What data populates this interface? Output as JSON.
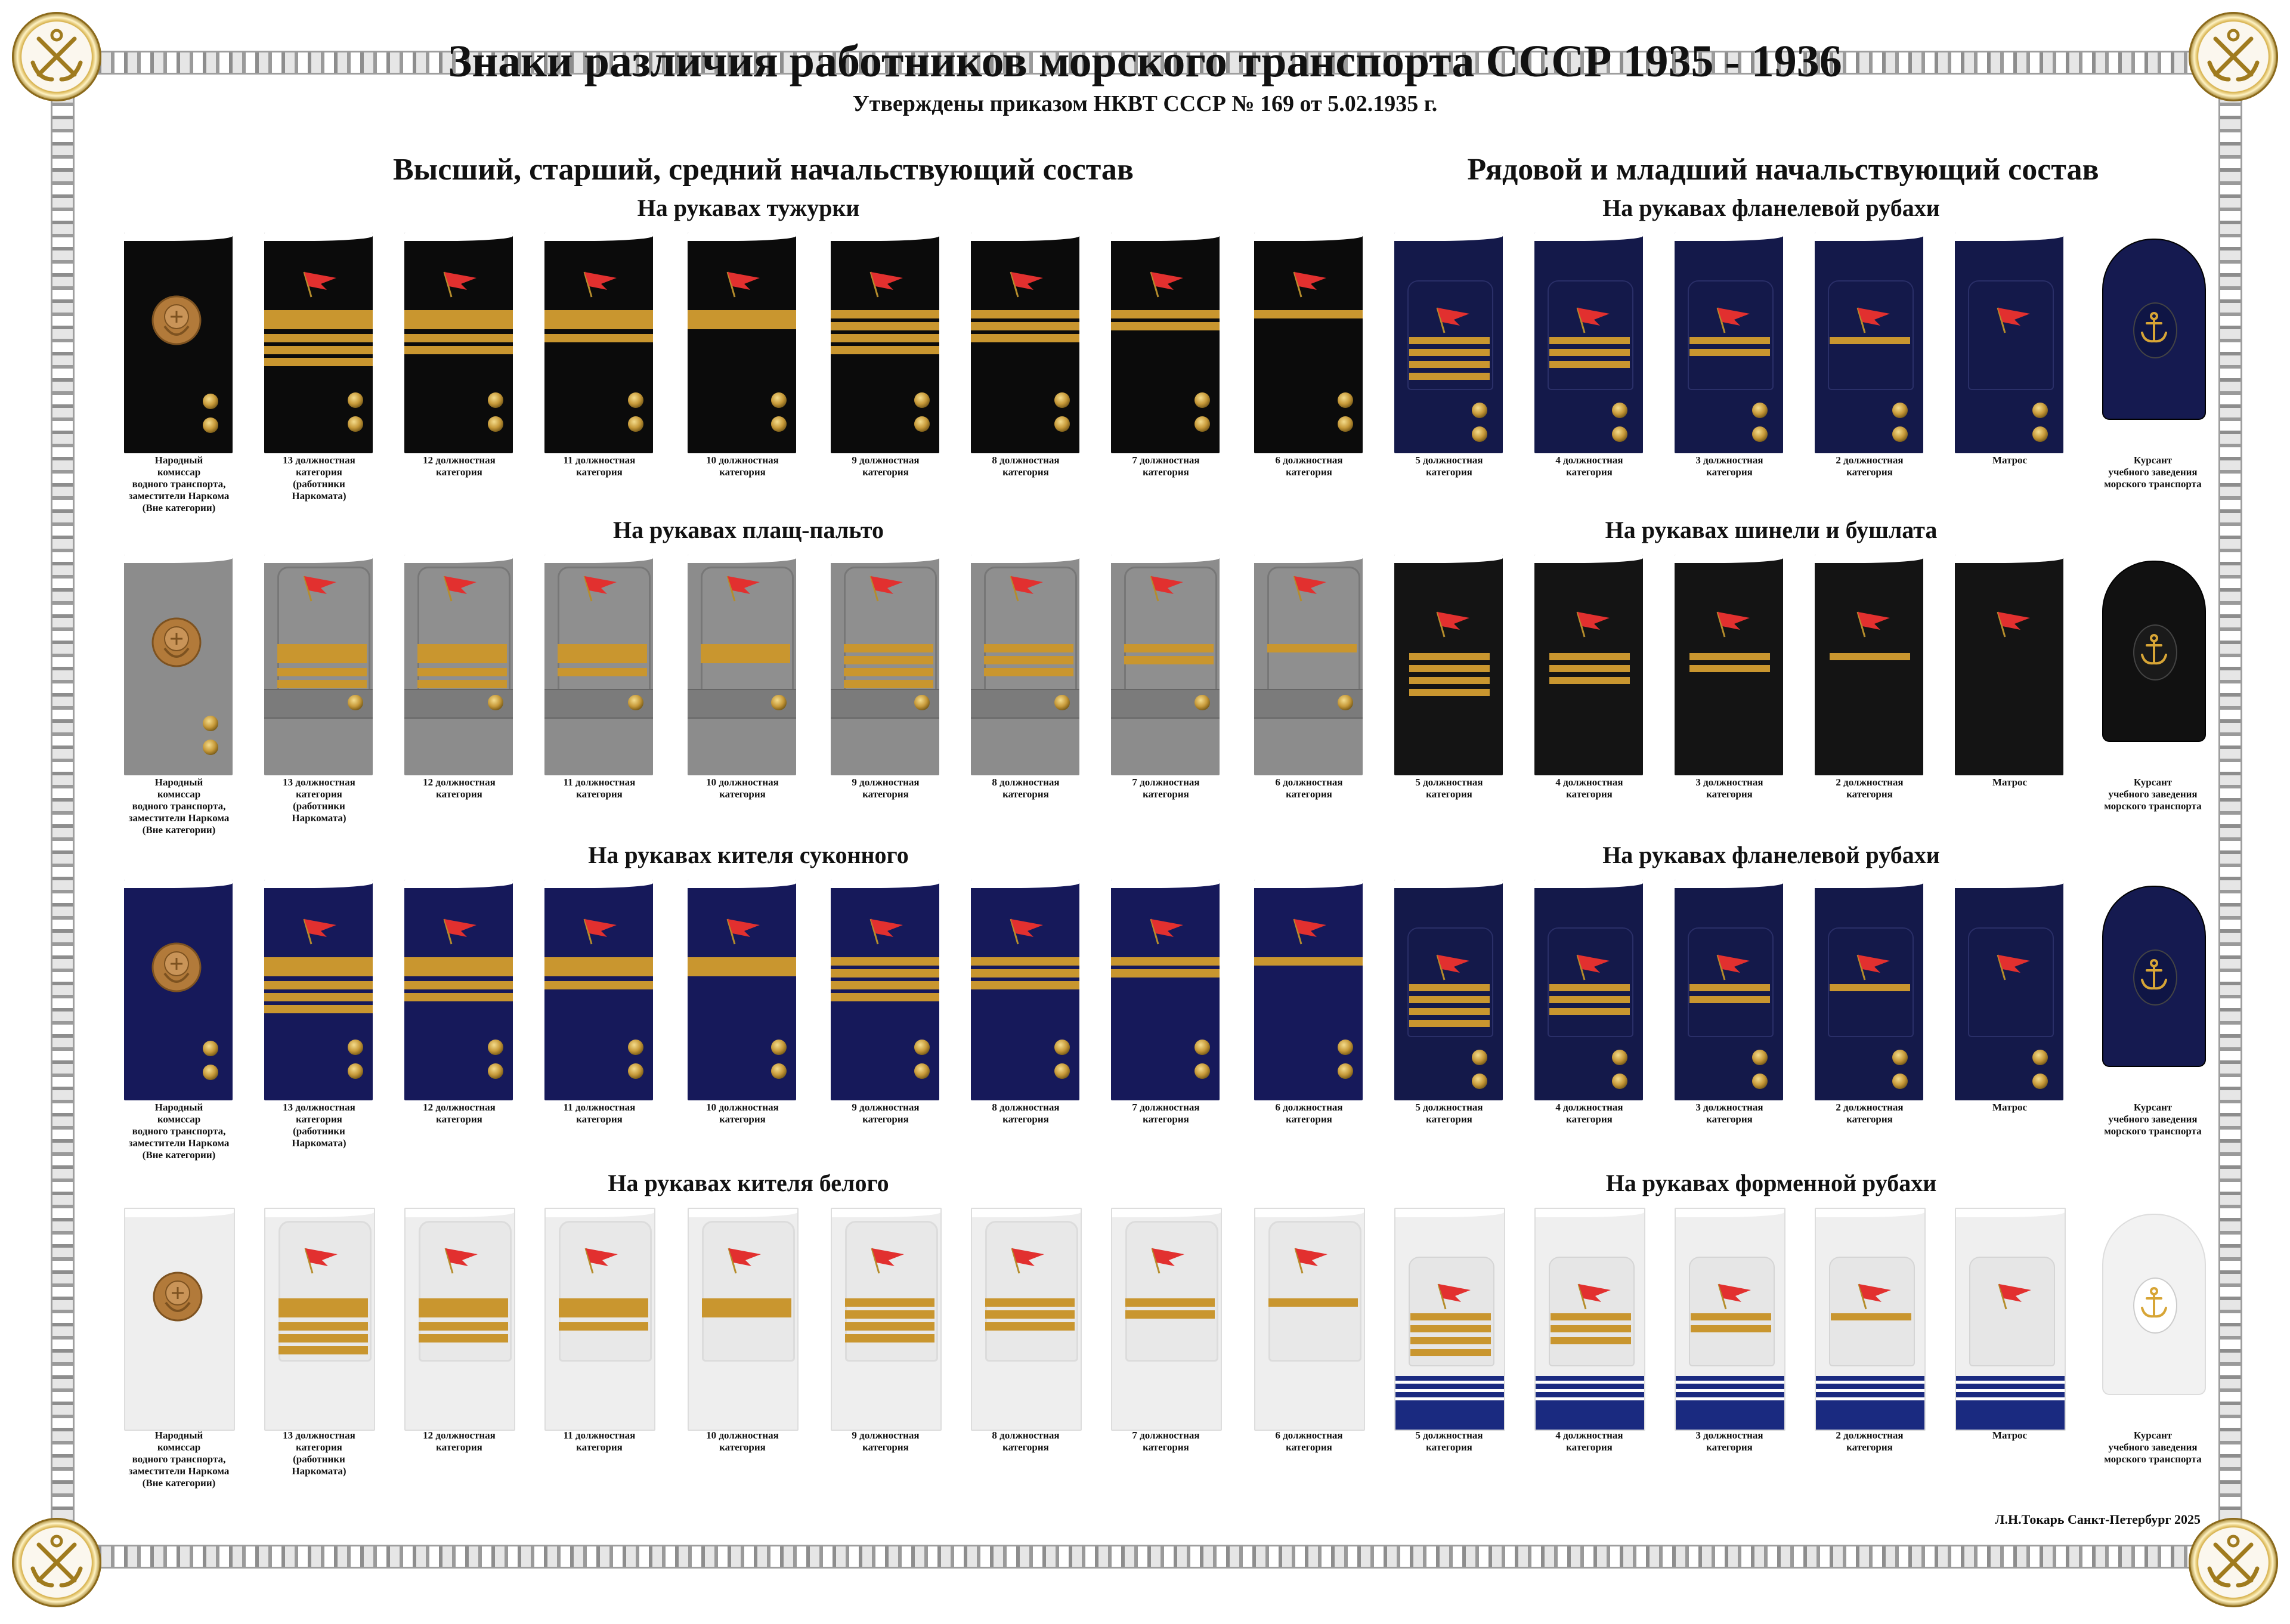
{
  "header": {
    "title": "Знаки различия работников морского транспорта СССР 1935 - 1936",
    "subtitle": "Утверждены приказом НКВТ СССР № 169 от 5.02.1935 г."
  },
  "sections": {
    "left": "Высший, старший, средний начальствующий состав",
    "right": "Рядовой и младший начальствующий состав"
  },
  "rows": [
    {
      "left_heading": "На рукавах тужурки",
      "right_heading": "На рукавах фланелевой рубахи",
      "left_cloth": "#0b0b0b",
      "right_cloth": "#14194a"
    },
    {
      "left_heading": "На рукавах плащ-пальто",
      "right_heading": "На рукавах шинели и бушлата",
      "left_cloth": "#8c8c8c",
      "right_cloth": "#141414"
    },
    {
      "left_heading": "На рукавах кителя суконного",
      "right_heading": "На рукавах фланелевой рубахи",
      "left_cloth": "#16195a",
      "right_cloth": "#14194a"
    },
    {
      "left_heading": "На рукавах кителя белого",
      "right_heading": "На рукавах форменной рубахи",
      "left_cloth": "#eeeeee",
      "right_cloth": "#efefef"
    }
  ],
  "left_labels": [
    "Народный\nкомиссар\nводного транспорта,\nзаместители Наркома\n(Вне категории)",
    "13 должностная\nкатегория\n(работники\nНаркомата)",
    "12 должностная\nкатегория",
    "11 должностная\nкатегория",
    "10 должностная\nкатегория",
    "9 должностная\nкатегория",
    "8 должностная\nкатегория",
    "7 должностная\nкатегория",
    "6 должностная\nкатегория"
  ],
  "right_labels": [
    "5 должностная\nкатегория",
    "4 должностная\nкатегория",
    "3 должностная\nкатегория",
    "2 должностная\nкатегория",
    "Матрос",
    "Курсант\nучебного заведения\nморского транспорта"
  ],
  "credit": "Л.Н.Токарь  Санкт-Петербург  2025",
  "colors": {
    "gold": "#c9962f",
    "flag": "#e2302f",
    "emblem": "#b27a3a"
  }
}
